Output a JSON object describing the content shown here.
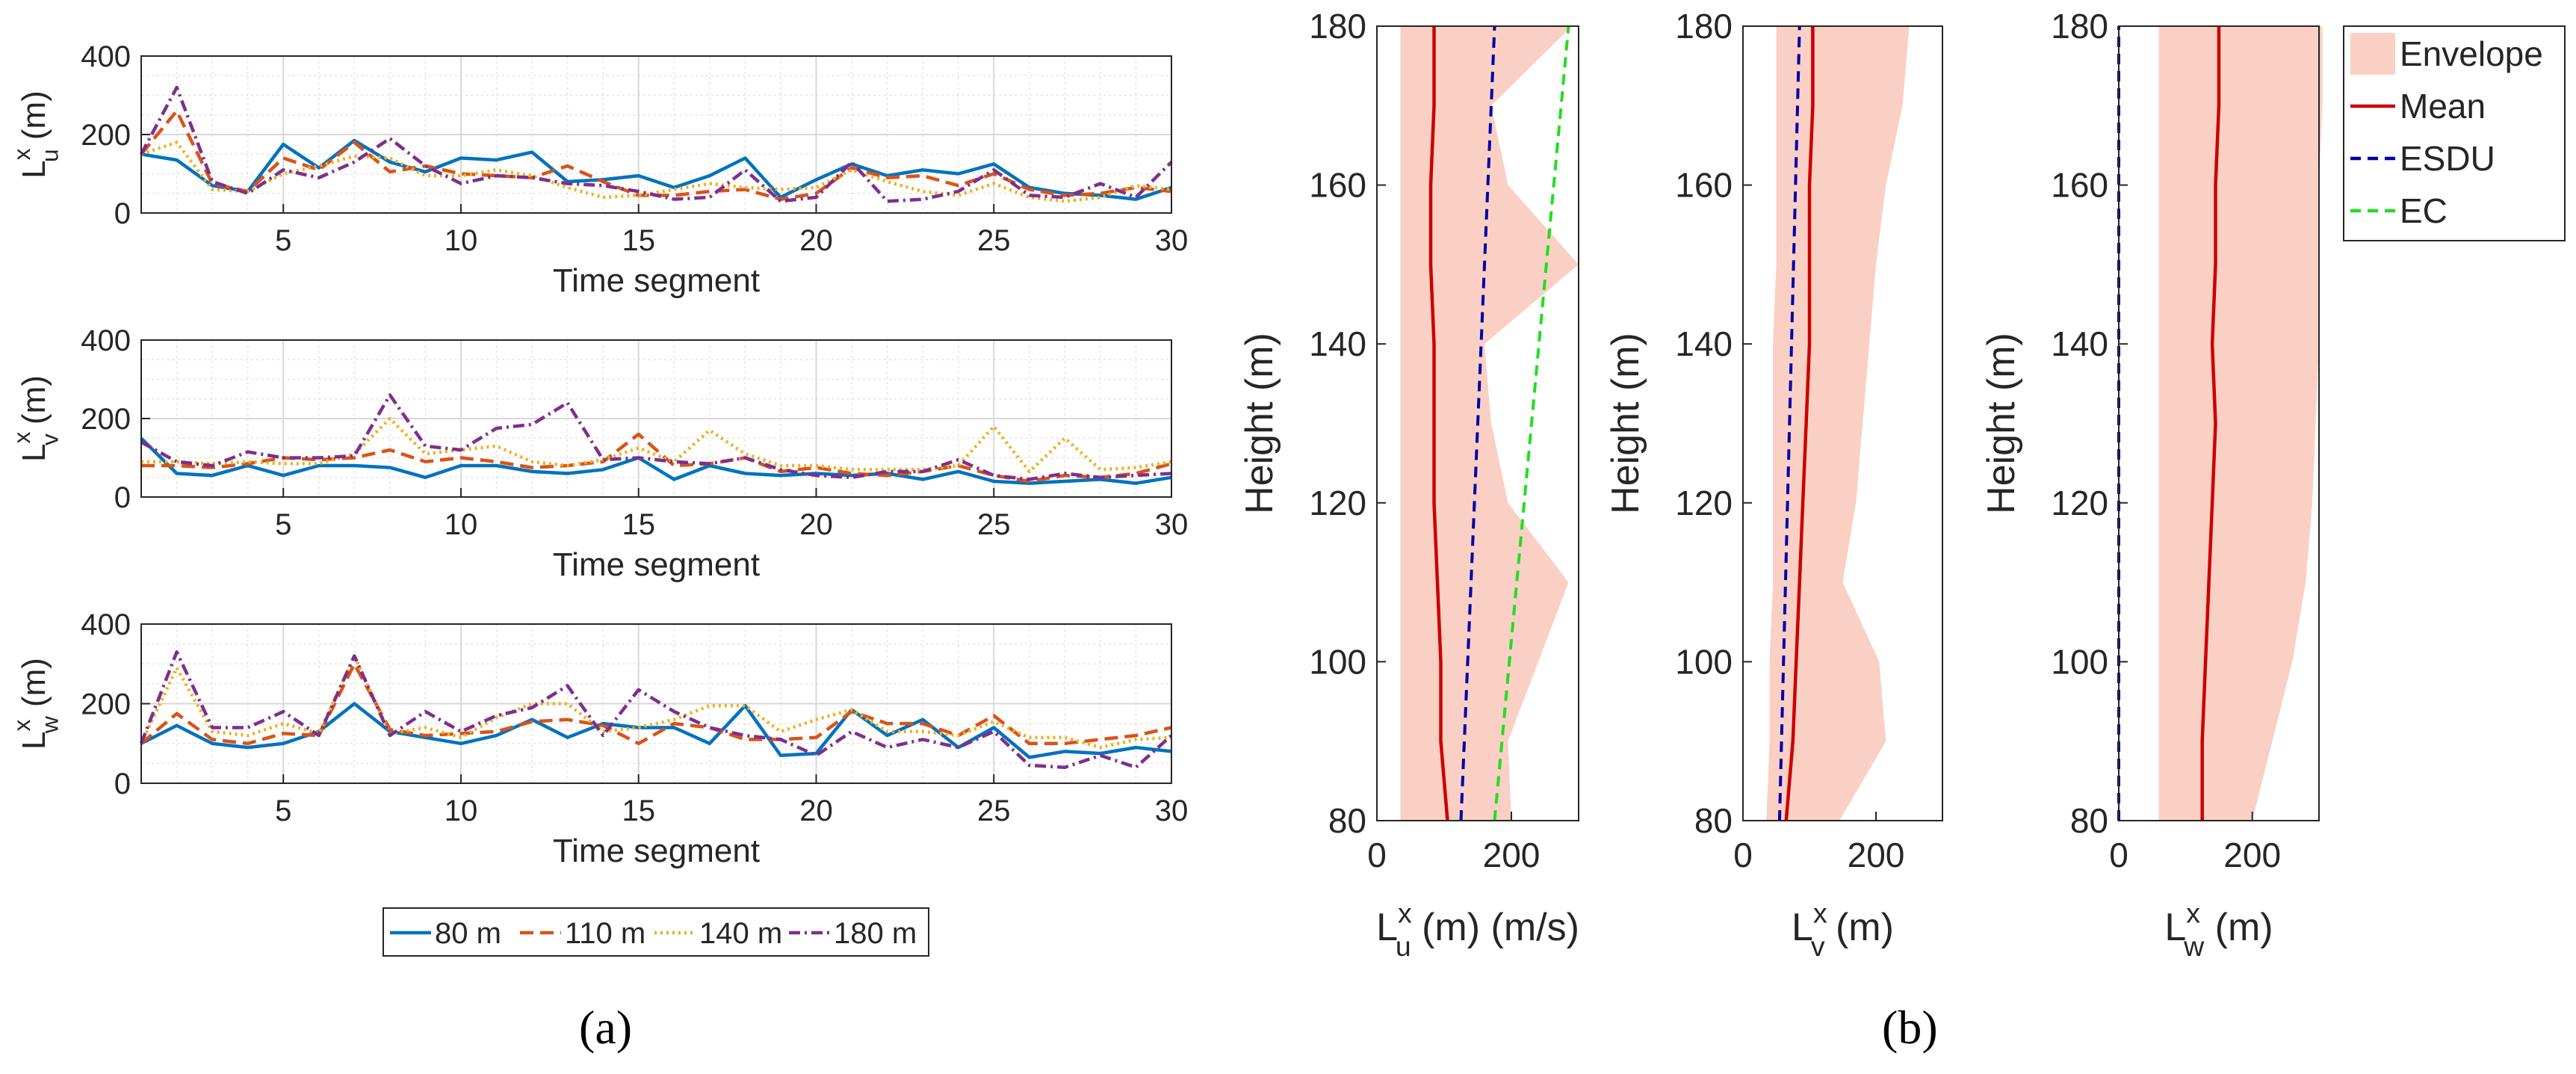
{
  "panel_labels": {
    "a": "(a)",
    "b": "(b)"
  },
  "chart_data": [
    {
      "type": "line",
      "panel": "a",
      "ylabel_main": "L",
      "ylabel_sup": "x",
      "ylabel_sub": "u",
      "ylabel_unit": " (m)",
      "xlabel": "Time segment",
      "xlim": [
        1,
        30
      ],
      "ylim": [
        0,
        400
      ],
      "xticks": [
        5,
        10,
        15,
        20,
        25,
        30
      ],
      "yticks": [
        0,
        200,
        400
      ],
      "grid": true,
      "x": [
        1,
        2,
        3,
        4,
        5,
        6,
        7,
        8,
        9,
        10,
        11,
        12,
        13,
        14,
        15,
        16,
        17,
        18,
        19,
        20,
        21,
        22,
        23,
        24,
        25,
        26,
        27,
        28,
        29,
        30
      ],
      "series": [
        {
          "name": "80 m",
          "values": [
            150,
            135,
            70,
            55,
            175,
            115,
            185,
            130,
            105,
            140,
            135,
            155,
            80,
            85,
            95,
            65,
            95,
            140,
            40,
            85,
            125,
            95,
            110,
            100,
            125,
            65,
            50,
            45,
            35,
            65
          ]
        },
        {
          "name": "110 m",
          "values": [
            150,
            260,
            75,
            55,
            140,
            110,
            180,
            105,
            120,
            100,
            95,
            90,
            120,
            80,
            45,
            45,
            55,
            60,
            35,
            50,
            115,
            90,
            95,
            70,
            100,
            60,
            45,
            50,
            65,
            55
          ]
        },
        {
          "name": "140 m",
          "values": [
            150,
            180,
            60,
            55,
            100,
            120,
            145,
            140,
            95,
            95,
            110,
            95,
            65,
            40,
            45,
            60,
            75,
            65,
            60,
            65,
            110,
            80,
            55,
            45,
            75,
            40,
            30,
            40,
            70,
            60
          ]
        },
        {
          "name": "180 m",
          "values": [
            150,
            320,
            80,
            50,
            110,
            90,
            130,
            190,
            120,
            75,
            95,
            90,
            75,
            70,
            55,
            35,
            40,
            110,
            30,
            40,
            130,
            30,
            35,
            55,
            110,
            45,
            40,
            75,
            40,
            130
          ]
        }
      ]
    },
    {
      "type": "line",
      "panel": "a",
      "ylabel_main": "L",
      "ylabel_sup": "x",
      "ylabel_sub": "v",
      "ylabel_unit": " (m)",
      "xlabel": "Time segment",
      "xlim": [
        1,
        30
      ],
      "ylim": [
        0,
        400
      ],
      "xticks": [
        5,
        10,
        15,
        20,
        25,
        30
      ],
      "yticks": [
        0,
        200,
        400
      ],
      "grid": true,
      "x": [
        1,
        2,
        3,
        4,
        5,
        6,
        7,
        8,
        9,
        10,
        11,
        12,
        13,
        14,
        15,
        16,
        17,
        18,
        19,
        20,
        21,
        22,
        23,
        24,
        25,
        26,
        27,
        28,
        29,
        30
      ],
      "series": [
        {
          "name": "80 m",
          "values": [
            150,
            60,
            55,
            80,
            55,
            80,
            80,
            75,
            50,
            80,
            80,
            65,
            60,
            70,
            100,
            45,
            80,
            60,
            55,
            60,
            55,
            60,
            45,
            65,
            40,
            35,
            40,
            45,
            35,
            50
          ]
        },
        {
          "name": "110 m",
          "values": [
            80,
            80,
            75,
            85,
            100,
            95,
            100,
            120,
            90,
            100,
            90,
            75,
            80,
            90,
            160,
            80,
            85,
            100,
            65,
            75,
            60,
            55,
            65,
            80,
            55,
            40,
            55,
            50,
            60,
            85
          ]
        },
        {
          "name": "140 m",
          "values": [
            90,
            90,
            85,
            90,
            85,
            85,
            110,
            200,
            110,
            120,
            130,
            90,
            80,
            95,
            125,
            90,
            170,
            110,
            80,
            80,
            70,
            70,
            70,
            80,
            180,
            65,
            150,
            70,
            75,
            90
          ]
        },
        {
          "name": "180 m",
          "values": [
            140,
            90,
            80,
            115,
            100,
            100,
            105,
            260,
            130,
            120,
            175,
            185,
            240,
            95,
            100,
            90,
            85,
            100,
            70,
            55,
            50,
            65,
            65,
            95,
            55,
            45,
            60,
            50,
            55,
            60
          ]
        }
      ]
    },
    {
      "type": "line",
      "panel": "a",
      "ylabel_main": "L",
      "ylabel_sup": "x",
      "ylabel_sub": "w",
      "ylabel_unit": " (m)",
      "xlabel": "Time segment",
      "xlim": [
        1,
        30
      ],
      "ylim": [
        0,
        400
      ],
      "xticks": [
        5,
        10,
        15,
        20,
        25,
        30
      ],
      "yticks": [
        0,
        200,
        400
      ],
      "grid": true,
      "x": [
        1,
        2,
        3,
        4,
        5,
        6,
        7,
        8,
        9,
        10,
        11,
        12,
        13,
        14,
        15,
        16,
        17,
        18,
        19,
        20,
        21,
        22,
        23,
        24,
        25,
        26,
        27,
        28,
        29,
        30
      ],
      "series": [
        {
          "name": "80 m",
          "values": [
            100,
            145,
            100,
            90,
            100,
            130,
            200,
            130,
            115,
            100,
            120,
            160,
            115,
            150,
            140,
            140,
            100,
            195,
            70,
            75,
            185,
            120,
            160,
            90,
            140,
            65,
            80,
            75,
            90,
            80
          ]
        },
        {
          "name": "110 m",
          "values": [
            100,
            175,
            110,
            100,
            125,
            120,
            300,
            135,
            120,
            125,
            130,
            155,
            160,
            145,
            100,
            150,
            140,
            110,
            110,
            115,
            180,
            150,
            150,
            120,
            170,
            100,
            100,
            110,
            120,
            140
          ]
        },
        {
          "name": "140 m",
          "values": [
            100,
            290,
            130,
            120,
            150,
            125,
            320,
            125,
            140,
            115,
            165,
            200,
            200,
            130,
            140,
            160,
            195,
            195,
            130,
            160,
            185,
            130,
            130,
            120,
            155,
            115,
            115,
            90,
            110,
            115
          ]
        },
        {
          "name": "180 m",
          "values": [
            100,
            330,
            140,
            140,
            180,
            120,
            320,
            120,
            180,
            130,
            170,
            190,
            245,
            120,
            235,
            180,
            140,
            120,
            110,
            70,
            130,
            90,
            110,
            90,
            130,
            45,
            40,
            70,
            40,
            120
          ]
        }
      ]
    },
    {
      "type": "line",
      "panel": "b",
      "xlabel_main": "L",
      "xlabel_sup": "x",
      "xlabel_sub": "u",
      "xlabel_unit": " (m) (m/s)",
      "ylabel": "Height (m)",
      "xlim": [
        0,
        300
      ],
      "ylim": [
        80,
        180
      ],
      "xticks": [
        0,
        200
      ],
      "yticks": [
        80,
        100,
        120,
        140,
        160,
        180
      ],
      "envelope": {
        "heights": [
          80,
          90,
          100,
          110,
          120,
          130,
          140,
          150,
          160,
          170,
          180
        ],
        "lower": [
          35,
          35,
          35,
          35,
          35,
          35,
          35,
          35,
          35,
          35,
          35
        ],
        "upper": [
          200,
          195,
          240,
          285,
          195,
          170,
          160,
          300,
          195,
          170,
          290
        ]
      },
      "mean": {
        "heights": [
          80,
          90,
          100,
          110,
          120,
          130,
          140,
          150,
          160,
          170,
          180
        ],
        "values": [
          105,
          95,
          95,
          90,
          85,
          85,
          85,
          80,
          80,
          85,
          85
        ]
      },
      "esdu": {
        "heights": [
          80,
          180
        ],
        "values": [
          125,
          175
        ]
      },
      "ec": {
        "heights": [
          80,
          180
        ],
        "values": [
          175,
          285
        ]
      }
    },
    {
      "type": "line",
      "panel": "b",
      "xlabel_main": "L",
      "xlabel_sup": "x",
      "xlabel_sub": "v",
      "xlabel_unit": " (m)",
      "ylabel": "Height (m)",
      "xlim": [
        0,
        300
      ],
      "ylim": [
        80,
        180
      ],
      "xticks": [
        0,
        200
      ],
      "yticks": [
        80,
        100,
        120,
        140,
        160,
        180
      ],
      "envelope": {
        "heights": [
          80,
          90,
          100,
          110,
          120,
          130,
          140,
          150,
          160,
          170,
          180
        ],
        "lower": [
          35,
          40,
          40,
          45,
          45,
          45,
          45,
          50,
          50,
          50,
          50
        ],
        "upper": [
          145,
          215,
          205,
          150,
          170,
          180,
          190,
          200,
          215,
          240,
          250
        ]
      },
      "mean": {
        "heights": [
          80,
          90,
          100,
          110,
          120,
          130,
          140,
          150,
          160,
          170,
          180
        ],
        "values": [
          65,
          75,
          80,
          85,
          90,
          95,
          100,
          100,
          100,
          105,
          105
        ]
      },
      "esdu": {
        "heights": [
          80,
          180
        ],
        "values": [
          55,
          85
        ]
      }
    },
    {
      "type": "line",
      "panel": "b",
      "xlabel_main": "L",
      "xlabel_sup": "x",
      "xlabel_sub": "w",
      "xlabel_unit": " (m)",
      "ylabel": "Height (m)",
      "xlim": [
        0,
        300
      ],
      "ylim": [
        80,
        180
      ],
      "xticks": [
        0,
        200
      ],
      "yticks": [
        80,
        100,
        120,
        140,
        160,
        180
      ],
      "envelope": {
        "heights": [
          80,
          90,
          100,
          110,
          120,
          130,
          140,
          150,
          160,
          170,
          180
        ],
        "lower": [
          60,
          60,
          60,
          60,
          60,
          60,
          60,
          60,
          60,
          60,
          60
        ],
        "upper": [
          200,
          230,
          260,
          280,
          290,
          295,
          300,
          300,
          300,
          305,
          305
        ]
      },
      "mean": {
        "heights": [
          80,
          90,
          100,
          110,
          120,
          130,
          140,
          150,
          160,
          170,
          180
        ],
        "values": [
          125,
          125,
          130,
          135,
          140,
          145,
          140,
          145,
          145,
          150,
          150
        ]
      },
      "esdu": {
        "heights": [
          80,
          180
        ],
        "values": [
          0,
          0
        ]
      }
    }
  ],
  "legends": {
    "a": {
      "entries": [
        {
          "label": "80 m",
          "color": "#0072BD",
          "dash": "none"
        },
        {
          "label": "110 m",
          "color": "#D95319",
          "dash": "18,9"
        },
        {
          "label": "140 m",
          "color": "#EDB120",
          "dash": "3,5"
        },
        {
          "label": "180 m",
          "color": "#7E2F8E",
          "dash": "15,6,3,6"
        }
      ]
    },
    "b": {
      "entries": [
        {
          "label": "Envelope",
          "color": "#FAD0C4",
          "kind": "patch"
        },
        {
          "label": "Mean",
          "color": "#CC0000",
          "kind": "line",
          "dash": "none"
        },
        {
          "label": "ESDU",
          "color": "#0000AA",
          "kind": "line",
          "dash": "14,9"
        },
        {
          "label": "EC",
          "color": "#22DD22",
          "kind": "line",
          "dash": "14,9"
        }
      ]
    }
  }
}
